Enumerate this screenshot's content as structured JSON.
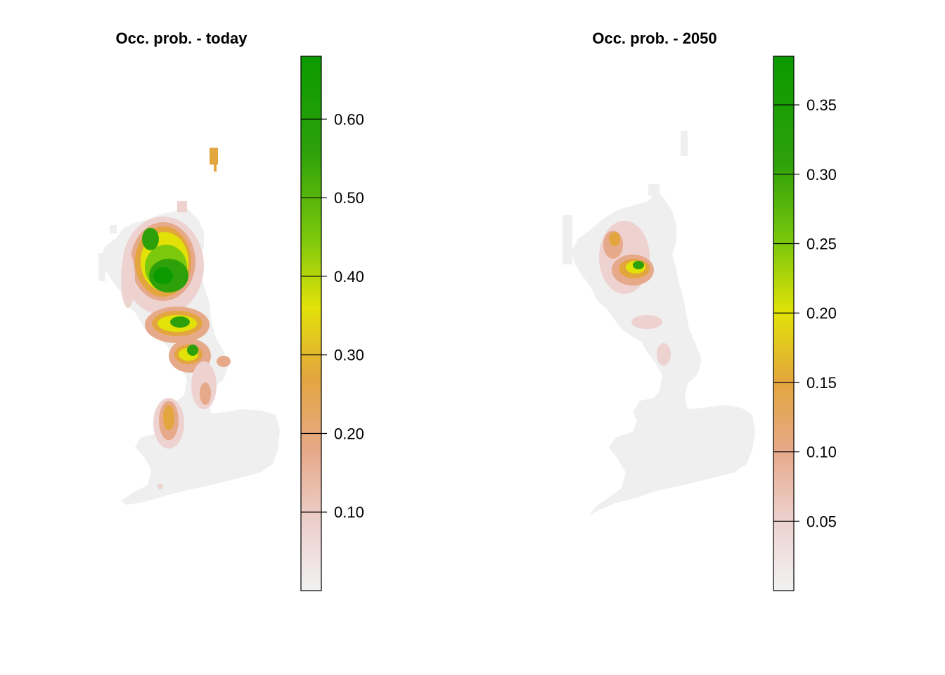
{
  "panels": [
    {
      "title": "Occ. prob. - today",
      "legend": {
        "range": [
          0.0,
          0.68
        ],
        "ticks": [
          0.1,
          0.2,
          0.3,
          0.4,
          0.5,
          0.6
        ],
        "tick_labels": [
          "0.10",
          "0.20",
          "0.30",
          "0.40",
          "0.50",
          "0.60"
        ]
      },
      "map": {
        "extent": "Great Britain",
        "max_value": 0.66,
        "hotspots": [
          {
            "region": "Scottish Highlands (north-west)",
            "value": 0.62
          },
          {
            "region": "Grampian / central Highlands",
            "value": 0.66
          },
          {
            "region": "Southern Uplands",
            "value": 0.45
          },
          {
            "region": "Lake District",
            "value": 0.55
          },
          {
            "region": "Pennines",
            "value": 0.22
          },
          {
            "region": "Wales (Snowdonia)",
            "value": 0.28
          },
          {
            "region": "Shetland",
            "value": 0.22
          }
        ]
      }
    },
    {
      "title": "Occ. prob. - 2050",
      "legend": {
        "range": [
          0.0,
          0.385
        ],
        "ticks": [
          0.05,
          0.1,
          0.15,
          0.2,
          0.25,
          0.3,
          0.35
        ],
        "tick_labels": [
          "0.05",
          "0.10",
          "0.15",
          "0.20",
          "0.25",
          "0.30",
          "0.35"
        ]
      },
      "map": {
        "extent": "Great Britain",
        "max_value": 0.38,
        "hotspots": [
          {
            "region": "Grampian / central Highlands",
            "value": 0.38
          },
          {
            "region": "Scottish Highlands (north-west)",
            "value": 0.14
          },
          {
            "region": "Southern Uplands",
            "value": 0.08
          },
          {
            "region": "Lake District",
            "value": 0.06
          }
        ]
      }
    }
  ],
  "colors": {
    "palette": [
      "#f2f2f2",
      "#edd2d0",
      "#e6a98a",
      "#e3a53e",
      "#e2e208",
      "#7cc80c",
      "#2ea10a",
      "#0b9a00"
    ],
    "background_land": "#efefef"
  }
}
